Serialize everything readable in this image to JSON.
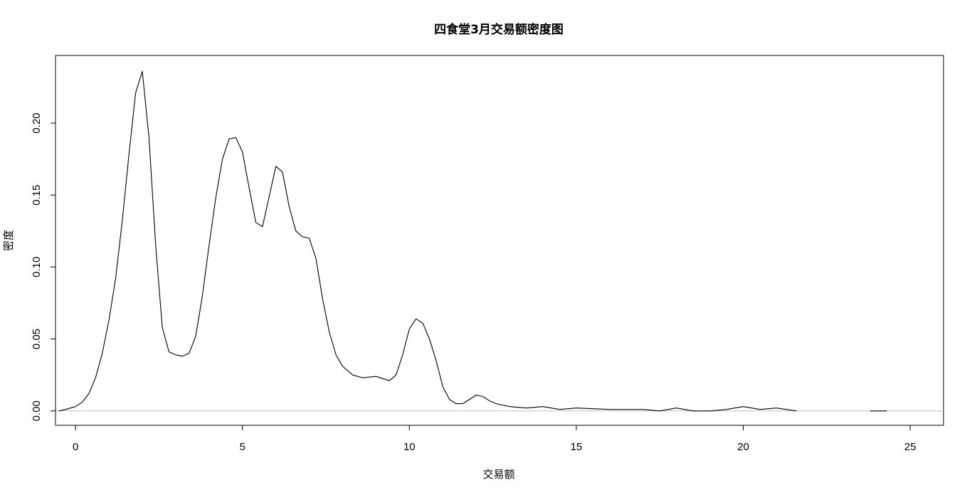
{
  "chart_data": {
    "type": "line",
    "title": "四食堂3月交易额密度图",
    "xlabel": "交易额",
    "ylabel": "密度",
    "xlim": [
      -0.6,
      26.0
    ],
    "ylim": [
      -0.01,
      0.247
    ],
    "x_ticks": [
      0,
      5,
      10,
      15,
      20,
      25
    ],
    "x_tick_labels": [
      "0",
      "5",
      "10",
      "15",
      "20",
      "25"
    ],
    "y_ticks": [
      0.0,
      0.05,
      0.1,
      0.15,
      0.2
    ],
    "y_tick_labels": [
      "0.00",
      "0.05",
      "0.10",
      "0.15",
      "0.20"
    ],
    "baseline": 0,
    "baseline_color": "#bdbdbd",
    "line_color": "#000000",
    "grid": false,
    "series": [
      {
        "points": [
          [
            -0.5,
            0.0
          ],
          [
            -0.3,
            0.001
          ],
          [
            0.0,
            0.003
          ],
          [
            0.2,
            0.006
          ],
          [
            0.4,
            0.012
          ],
          [
            0.6,
            0.023
          ],
          [
            0.8,
            0.04
          ],
          [
            1.0,
            0.063
          ],
          [
            1.2,
            0.092
          ],
          [
            1.4,
            0.132
          ],
          [
            1.6,
            0.178
          ],
          [
            1.8,
            0.221
          ],
          [
            2.0,
            0.236
          ],
          [
            2.2,
            0.19
          ],
          [
            2.4,
            0.115
          ],
          [
            2.6,
            0.058
          ],
          [
            2.8,
            0.041
          ],
          [
            3.0,
            0.039
          ],
          [
            3.2,
            0.038
          ],
          [
            3.4,
            0.04
          ],
          [
            3.6,
            0.052
          ],
          [
            3.8,
            0.08
          ],
          [
            4.0,
            0.115
          ],
          [
            4.2,
            0.148
          ],
          [
            4.4,
            0.175
          ],
          [
            4.6,
            0.189
          ],
          [
            4.8,
            0.19
          ],
          [
            5.0,
            0.18
          ],
          [
            5.2,
            0.155
          ],
          [
            5.4,
            0.131
          ],
          [
            5.6,
            0.128
          ],
          [
            5.8,
            0.149
          ],
          [
            6.0,
            0.17
          ],
          [
            6.2,
            0.166
          ],
          [
            6.4,
            0.142
          ],
          [
            6.6,
            0.125
          ],
          [
            6.8,
            0.121
          ],
          [
            7.0,
            0.12
          ],
          [
            7.2,
            0.106
          ],
          [
            7.4,
            0.078
          ],
          [
            7.6,
            0.055
          ],
          [
            7.8,
            0.039
          ],
          [
            8.0,
            0.031
          ],
          [
            8.3,
            0.025
          ],
          [
            8.6,
            0.023
          ],
          [
            9.0,
            0.024
          ],
          [
            9.4,
            0.021
          ],
          [
            9.6,
            0.025
          ],
          [
            9.8,
            0.039
          ],
          [
            10.0,
            0.057
          ],
          [
            10.2,
            0.064
          ],
          [
            10.4,
            0.061
          ],
          [
            10.6,
            0.05
          ],
          [
            10.8,
            0.035
          ],
          [
            11.0,
            0.017
          ],
          [
            11.2,
            0.008
          ],
          [
            11.4,
            0.005
          ],
          [
            11.6,
            0.005
          ],
          [
            11.8,
            0.008
          ],
          [
            12.0,
            0.011
          ],
          [
            12.2,
            0.01
          ],
          [
            12.4,
            0.007
          ],
          [
            12.6,
            0.005
          ],
          [
            13.0,
            0.003
          ],
          [
            13.5,
            0.002
          ],
          [
            14.0,
            0.003
          ],
          [
            14.5,
            0.001
          ],
          [
            15.0,
            0.002
          ],
          [
            16.0,
            0.001
          ],
          [
            17.0,
            0.001
          ],
          [
            17.5,
            0.0
          ],
          [
            18.0,
            0.002
          ],
          [
            18.5,
            0.0
          ],
          [
            19.0,
            0.0
          ],
          [
            19.5,
            0.001
          ],
          [
            20.0,
            0.003
          ],
          [
            20.5,
            0.001
          ],
          [
            21.0,
            0.002
          ],
          [
            21.6,
            0.0
          ]
        ]
      },
      {
        "points": [
          [
            23.8,
            0.0
          ],
          [
            24.3,
            0.0
          ]
        ]
      }
    ]
  }
}
